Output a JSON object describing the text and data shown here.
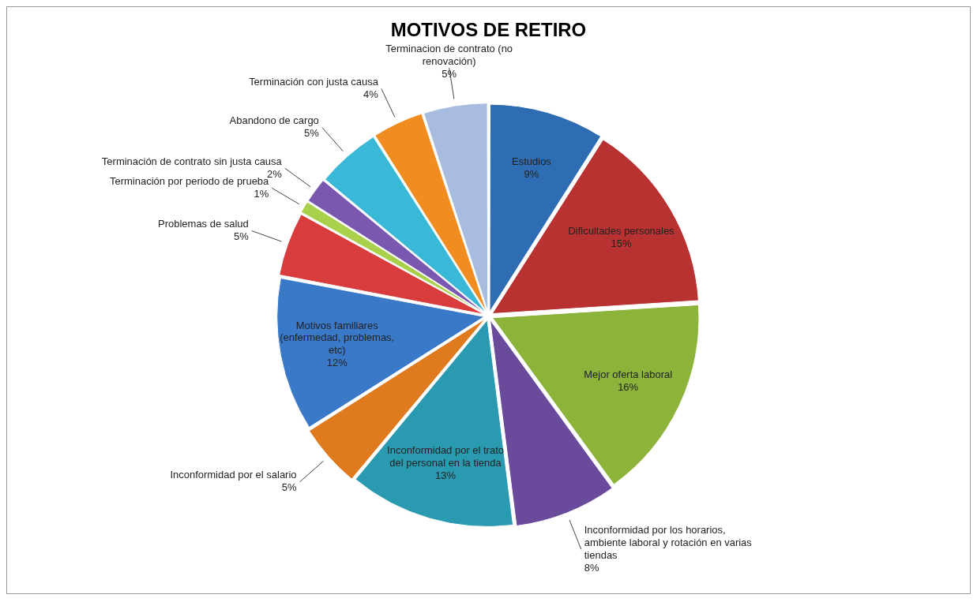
{
  "chart_data": {
    "type": "pie",
    "title": "MOTIVOS DE RETIRO",
    "categories": [
      "Estudios",
      "Dificultades personales",
      "Mejor oferta laboral",
      "Inconformidad por los horarios, ambiente laboral y rotación en varias tiendas",
      "Inconformidad por el trato del personal en la tienda",
      "Inconformidad por el salario",
      "Motivos familiares (enfermedad, problemas, etc)",
      "Problemas de salud",
      "Terminación por periodo de prueba",
      "Terminación de contrato sin justa causa",
      "Abandono de cargo",
      "Terminación con justa causa",
      "Terminacion de contrato (no renovación)"
    ],
    "values": [
      9,
      15,
      16,
      8,
      13,
      5,
      12,
      5,
      1,
      2,
      5,
      4,
      5
    ],
    "value_labels": [
      "9%",
      "15%",
      "16%",
      "8%",
      "13%",
      "5%",
      "12%",
      "5%",
      "1%",
      "2%",
      "5%",
      "4%",
      "5%"
    ],
    "colors": [
      "#2e6db4",
      "#b83232",
      "#8cb33a",
      "#6a4a9a",
      "#2a9ab0",
      "#e07a1f",
      "#3a78c8",
      "#d83c3c",
      "#a8d04a",
      "#7a58b0",
      "#3ab8d8",
      "#f08c20",
      "#a8bce0"
    ],
    "legend": false
  }
}
